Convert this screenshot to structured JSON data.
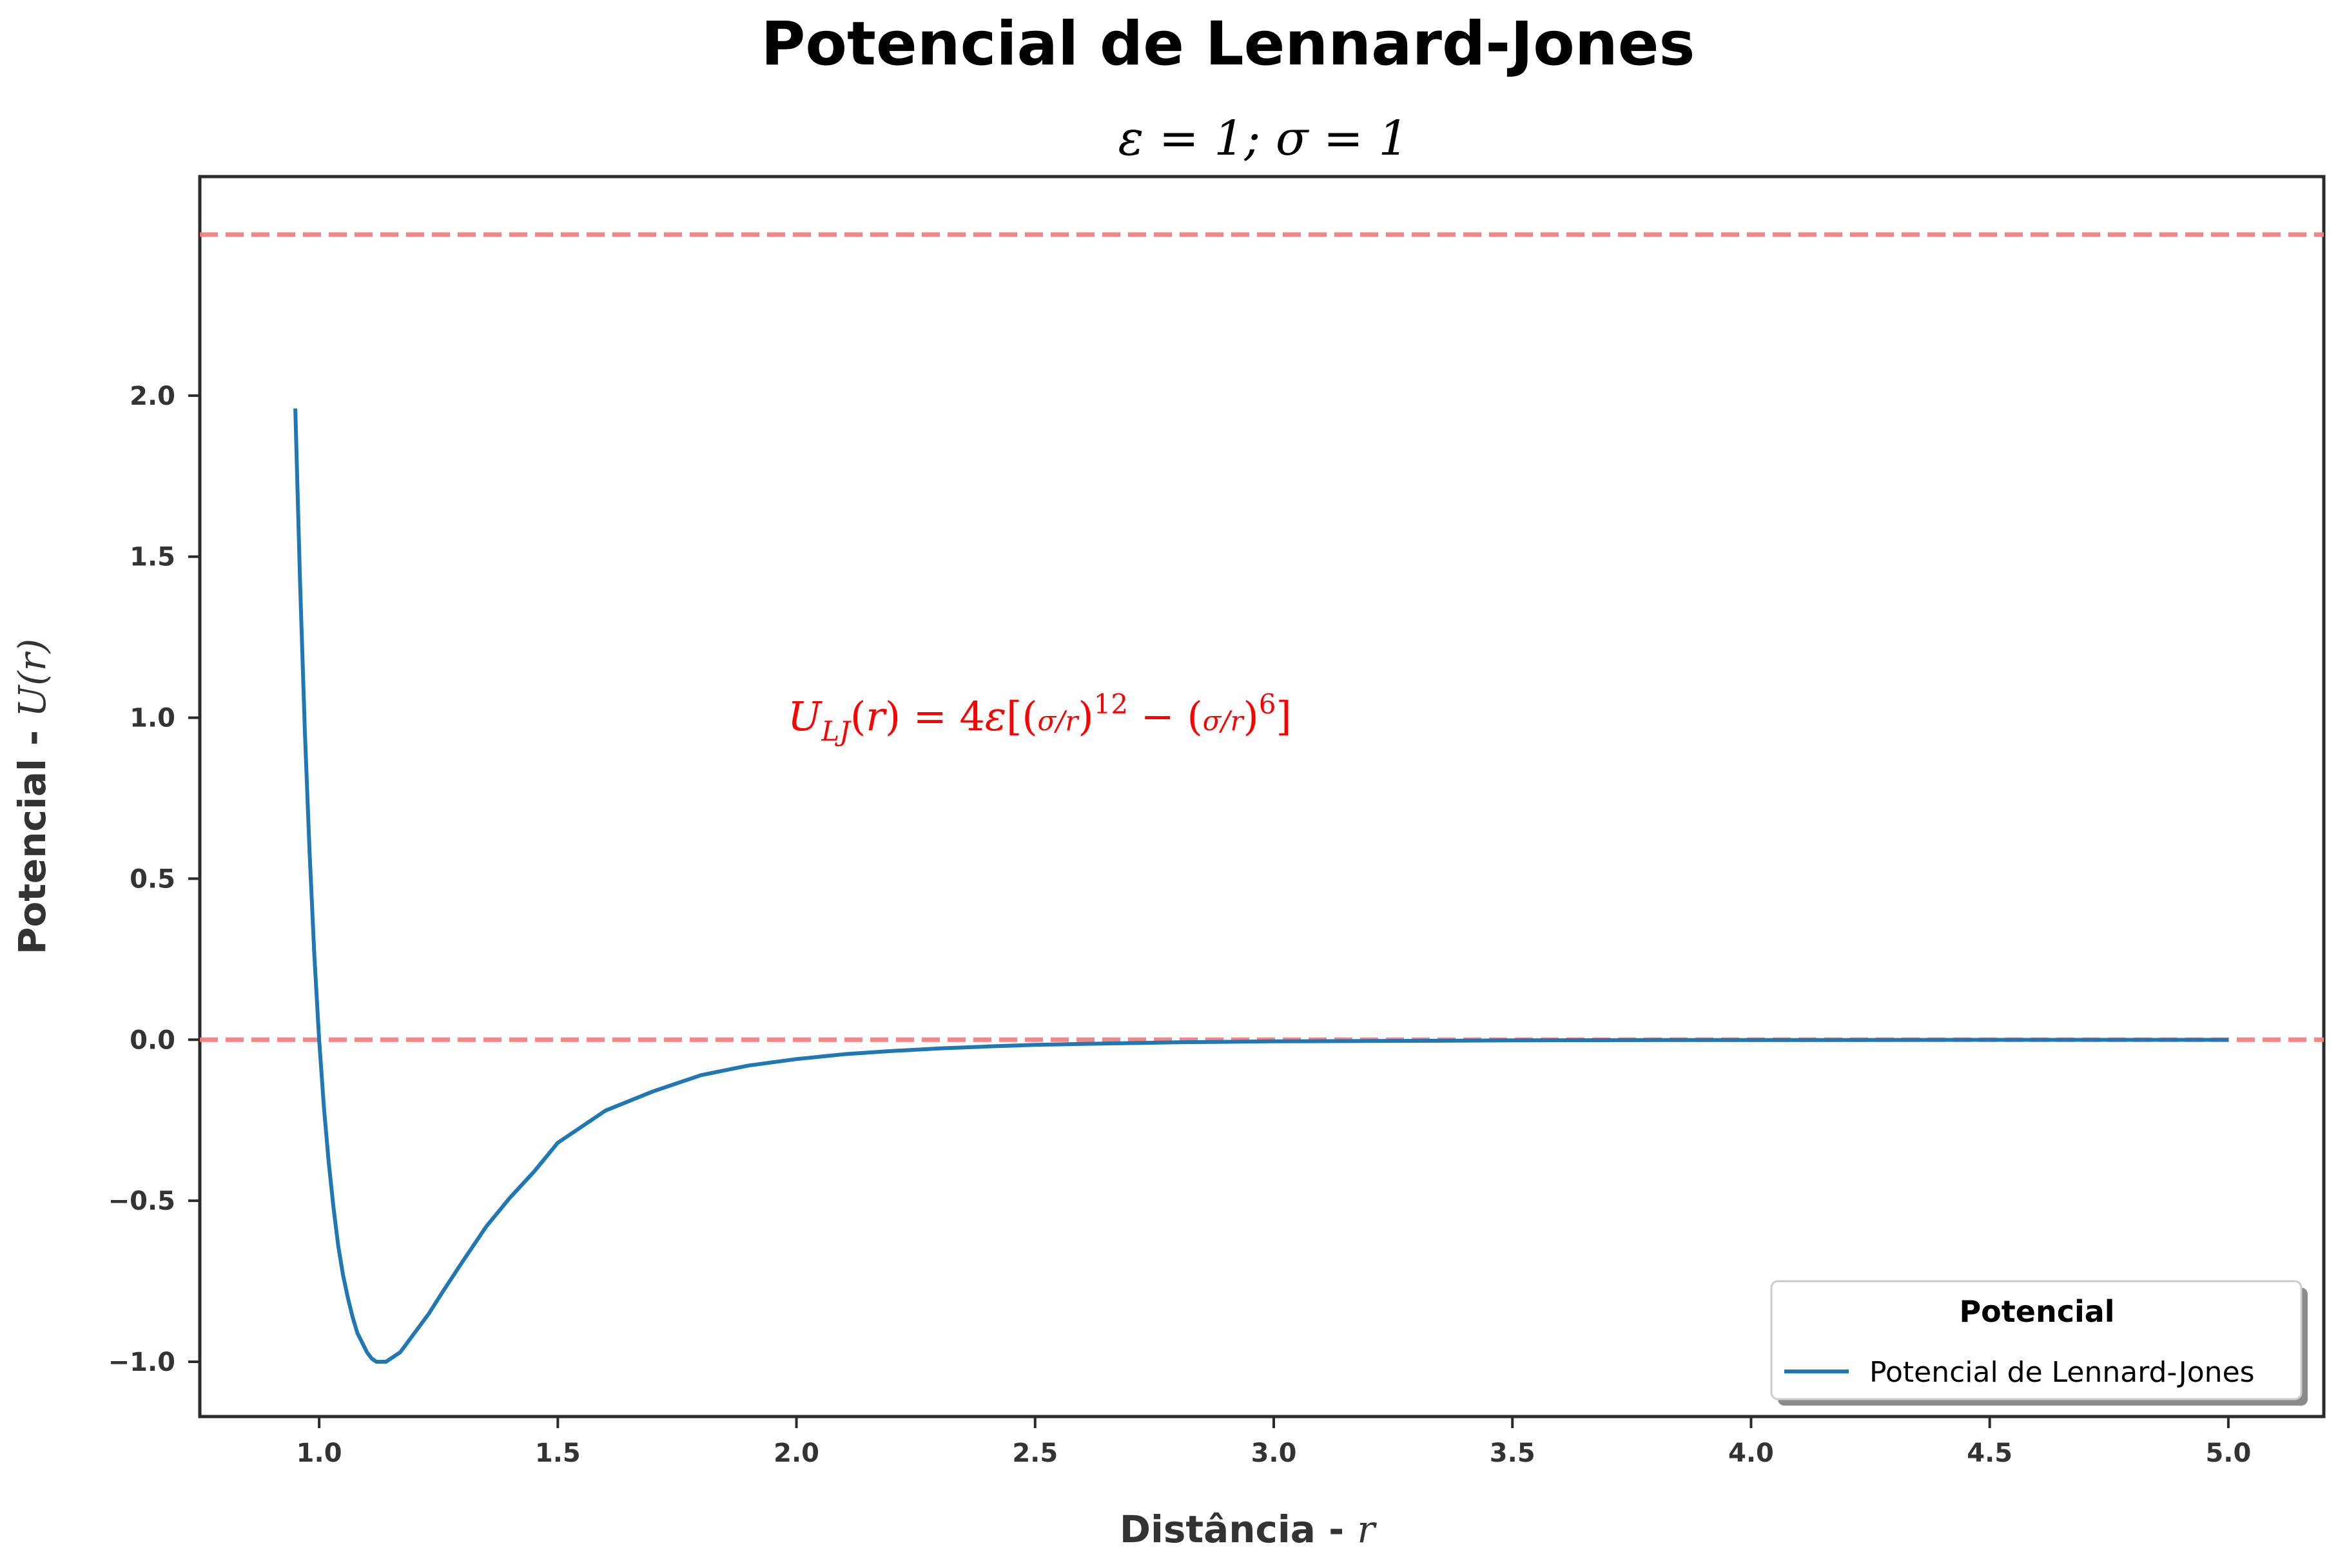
{
  "chart_data": {
    "type": "line",
    "title": "Potencial de Lennard-Jones",
    "subtitle": "ε = 1; σ = 1",
    "xlabel": "Distância - ",
    "xlabel_var": "r",
    "ylabel": "Potencial - ",
    "ylabel_var": "U(r)",
    "xlim": [
      0.75,
      5.2
    ],
    "ylim": [
      -1.17,
      2.68
    ],
    "xticks": [
      1.0,
      1.5,
      2.0,
      2.5,
      3.0,
      3.5,
      4.0,
      4.5,
      5.0
    ],
    "xtick_labels": [
      "1.0",
      "1.5",
      "2.0",
      "2.5",
      "3.0",
      "3.5",
      "4.0",
      "4.5",
      "5.0"
    ],
    "yticks": [
      -1.0,
      -0.5,
      0.0,
      0.5,
      1.0,
      1.5,
      2.0
    ],
    "ytick_labels": [
      "−1.0",
      "−0.5",
      "0.0",
      "0.5",
      "1.0",
      "1.5",
      "2.0"
    ],
    "grid": false,
    "series": [
      {
        "name": "Potencial de Lennard-Jones",
        "color": "#1f77b4",
        "x": [
          0.95,
          0.96,
          0.97,
          0.98,
          0.99,
          1.0,
          1.01,
          1.02,
          1.03,
          1.04,
          1.05,
          1.06,
          1.07,
          1.08,
          1.09,
          1.1,
          1.11,
          1.12,
          1.13,
          1.14,
          1.15,
          1.17,
          1.2,
          1.23,
          1.26,
          1.3,
          1.35,
          1.4,
          1.45,
          1.5,
          1.6,
          1.7,
          1.8,
          1.9,
          2.0,
          2.1,
          2.2,
          2.3,
          2.4,
          2.5,
          2.6,
          2.8,
          3.0,
          3.2,
          3.5,
          3.8,
          4.0,
          4.3,
          4.6,
          5.0
        ],
        "y": [
          1.96,
          1.42,
          0.96,
          0.58,
          0.26,
          0.0,
          -0.21,
          -0.38,
          -0.52,
          -0.64,
          -0.73,
          -0.8,
          -0.86,
          -0.91,
          -0.94,
          -0.97,
          -0.99,
          -1.0,
          -1.0,
          -1.0,
          -0.99,
          -0.97,
          -0.91,
          -0.85,
          -0.78,
          -0.69,
          -0.58,
          -0.49,
          -0.41,
          -0.32,
          -0.22,
          -0.16,
          -0.11,
          -0.08,
          -0.06,
          -0.045,
          -0.035,
          -0.027,
          -0.021,
          -0.016,
          -0.013,
          -0.008,
          -0.005,
          -0.004,
          -0.002,
          -0.001,
          -0.001,
          -0.0005,
          -0.0003,
          -0.0003
        ]
      }
    ],
    "reference_lines": [
      {
        "y": 2.5,
        "color": "#f08080",
        "style": "dashed"
      },
      {
        "y": 0.0,
        "color": "#f08080",
        "style": "dashed"
      }
    ],
    "annotation": {
      "text": "U_LJ(r) = 4ε[(σ/r)^12 − (σ/r)^6]",
      "x": 1.97,
      "y": 1.0,
      "color": "#ff0000"
    },
    "legend": {
      "title": "Potencial",
      "position": "lower-right",
      "entries": [
        "Potencial de Lennard-Jones"
      ]
    }
  }
}
